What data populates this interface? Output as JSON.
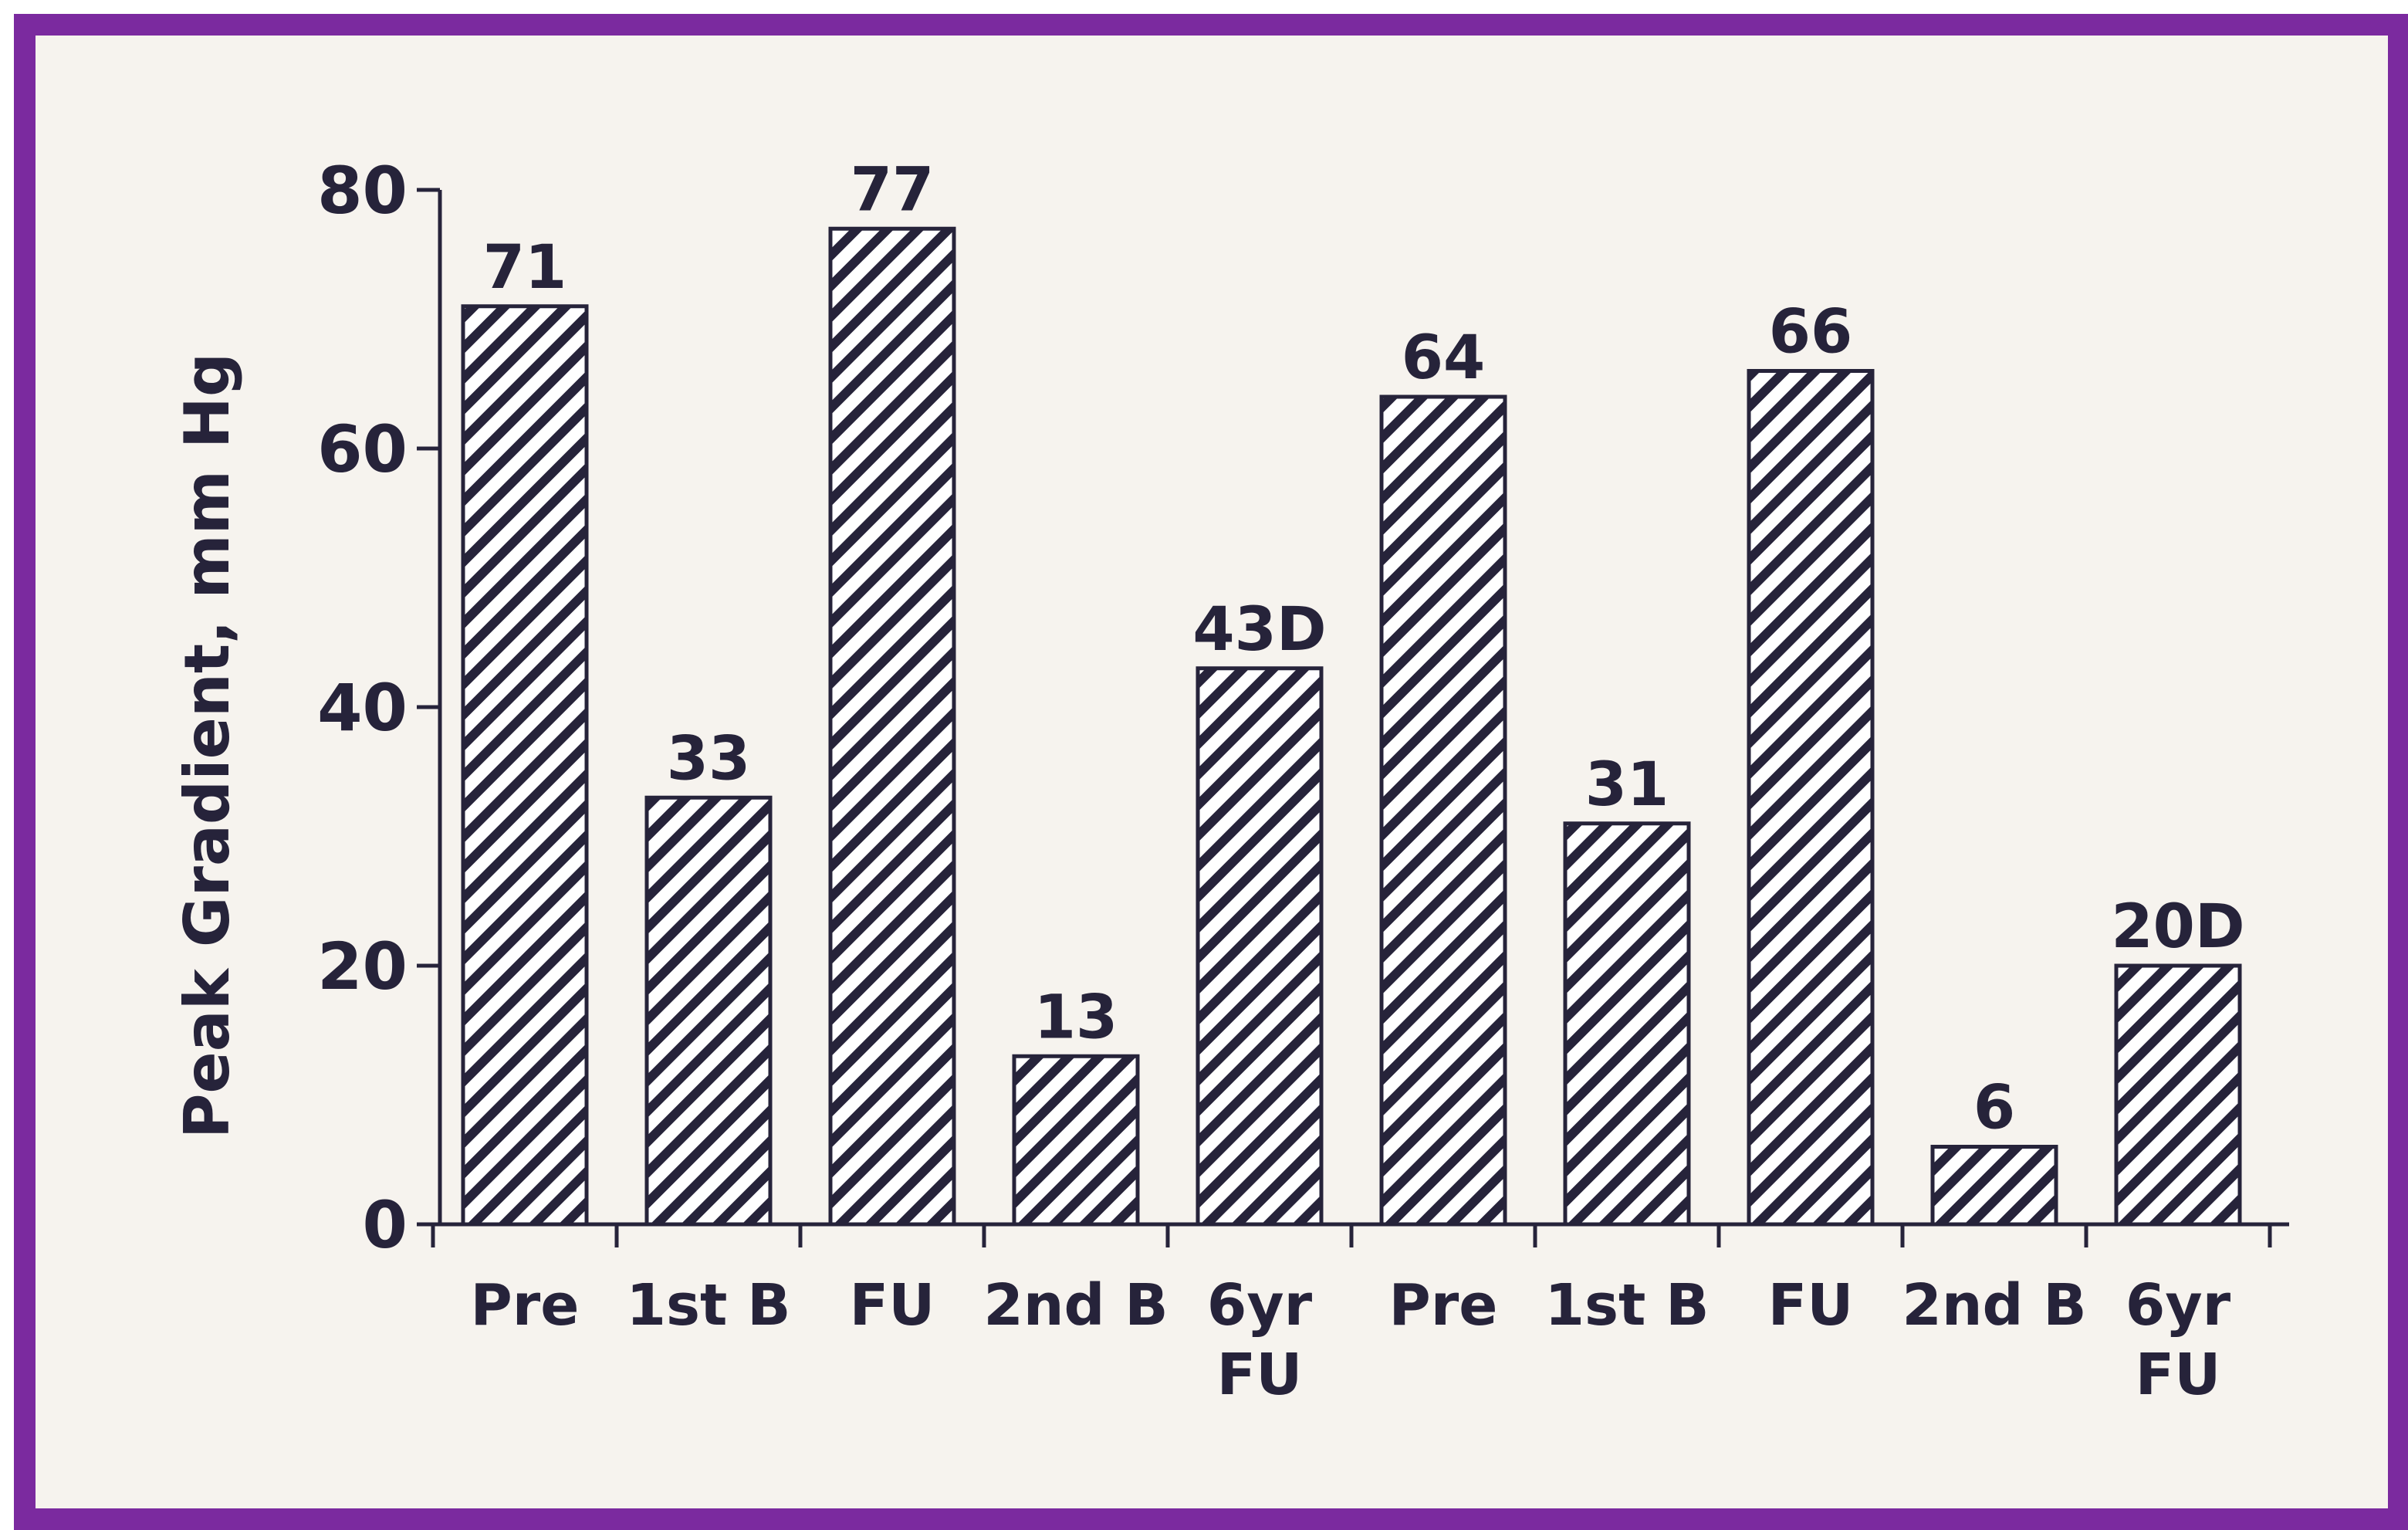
{
  "colors": {
    "frame_border": "#7b2a9f",
    "background": "#f6f3ee",
    "ink": "#26233a",
    "bar_fill": "#ffffff"
  },
  "chart_data": {
    "type": "bar",
    "ylabel": "Peak Gradient, mm Hg",
    "ylim": [
      0,
      80
    ],
    "yticks": [
      0,
      20,
      40,
      60,
      80
    ],
    "grid": false,
    "legend": "none",
    "bar_pattern": "diagonal-hatch",
    "categories": [
      "Pre",
      "1st B",
      "FU",
      "2nd B",
      "6yr FU",
      "Pre",
      "1st B",
      "FU",
      "2nd B",
      "6yr FU"
    ],
    "category_lines": [
      [
        "Pre"
      ],
      [
        "1st B"
      ],
      [
        "FU"
      ],
      [
        "2nd B"
      ],
      [
        "6yr",
        "FU"
      ],
      [
        "Pre"
      ],
      [
        "1st B"
      ],
      [
        "FU"
      ],
      [
        "2nd B"
      ],
      [
        "6yr",
        "FU"
      ]
    ],
    "values": [
      71,
      33,
      77,
      13,
      43,
      64,
      31,
      66,
      6,
      20
    ],
    "value_labels": [
      "71",
      "33",
      "77",
      "13",
      "43D",
      "64",
      "31",
      "66",
      "6",
      "20D"
    ]
  }
}
